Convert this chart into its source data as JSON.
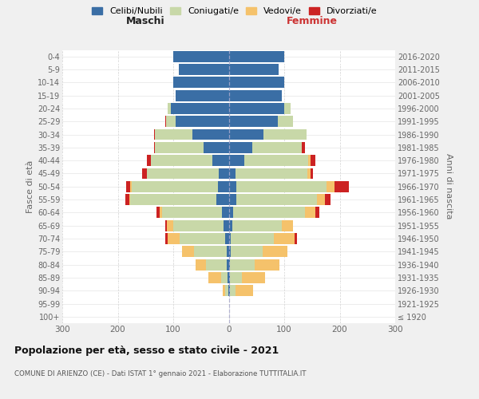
{
  "age_groups": [
    "100+",
    "95-99",
    "90-94",
    "85-89",
    "80-84",
    "75-79",
    "70-74",
    "65-69",
    "60-64",
    "55-59",
    "50-54",
    "45-49",
    "40-44",
    "35-39",
    "30-34",
    "25-29",
    "20-24",
    "15-19",
    "10-14",
    "5-9",
    "0-4"
  ],
  "birth_years": [
    "≤ 1920",
    "1921-1925",
    "1926-1930",
    "1931-1935",
    "1936-1940",
    "1941-1945",
    "1946-1950",
    "1951-1955",
    "1956-1960",
    "1961-1965",
    "1966-1970",
    "1971-1975",
    "1976-1980",
    "1981-1985",
    "1986-1990",
    "1991-1995",
    "1996-2000",
    "2001-2005",
    "2006-2010",
    "2011-2015",
    "2016-2020"
  ],
  "male": {
    "celibi": [
      0,
      0,
      1,
      2,
      3,
      4,
      6,
      10,
      12,
      22,
      20,
      18,
      30,
      45,
      65,
      95,
      105,
      95,
      100,
      90,
      100
    ],
    "coniugati": [
      0,
      0,
      5,
      12,
      38,
      58,
      82,
      90,
      108,
      155,
      155,
      130,
      110,
      88,
      68,
      18,
      5,
      0,
      0,
      0,
      0
    ],
    "vedovi": [
      0,
      0,
      5,
      22,
      18,
      22,
      22,
      12,
      5,
      2,
      2,
      0,
      0,
      0,
      0,
      0,
      0,
      0,
      0,
      0,
      0
    ],
    "divorziati": [
      0,
      0,
      0,
      0,
      0,
      0,
      5,
      2,
      5,
      8,
      8,
      8,
      8,
      2,
      2,
      2,
      0,
      0,
      0,
      0,
      0
    ]
  },
  "female": {
    "nubili": [
      0,
      0,
      2,
      2,
      2,
      3,
      4,
      6,
      8,
      14,
      14,
      12,
      28,
      42,
      62,
      88,
      100,
      95,
      100,
      90,
      100
    ],
    "coniugate": [
      0,
      1,
      10,
      22,
      45,
      58,
      78,
      90,
      130,
      145,
      162,
      130,
      115,
      90,
      78,
      28,
      12,
      0,
      0,
      0,
      0
    ],
    "vedove": [
      0,
      0,
      32,
      42,
      45,
      45,
      36,
      20,
      18,
      15,
      15,
      5,
      5,
      0,
      0,
      0,
      0,
      0,
      0,
      0,
      0
    ],
    "divorziate": [
      0,
      0,
      0,
      0,
      0,
      0,
      5,
      0,
      8,
      10,
      25,
      5,
      8,
      5,
      0,
      0,
      0,
      0,
      0,
      0,
      0
    ]
  },
  "colors": {
    "celibi": "#3A6EA5",
    "coniugati": "#C8D8A8",
    "vedovi": "#F5C26B",
    "divorziati": "#CC2222"
  },
  "legend_labels": [
    "Celibi/Nubili",
    "Coniugati/e",
    "Vedovi/e",
    "Divorziati/e"
  ],
  "title": "Popolazione per età, sesso e stato civile - 2021",
  "subtitle": "COMUNE DI ARIENZO (CE) - Dati ISTAT 1° gennaio 2021 - Elaborazione TUTTITALIA.IT",
  "label_maschi": "Maschi",
  "label_femmine": "Femmine",
  "ylabel_left": "Fasce di età",
  "ylabel_right": "Anni di nascita",
  "xlim": 300,
  "bg_color": "#f0f0f0",
  "plot_bg": "#ffffff",
  "grid_color": "#cccccc"
}
